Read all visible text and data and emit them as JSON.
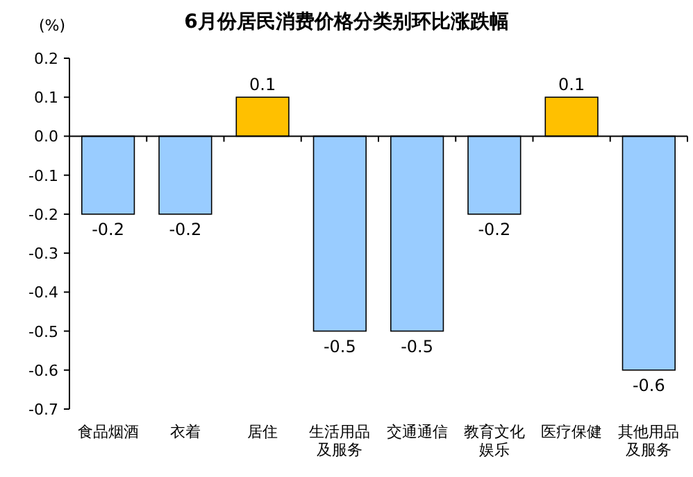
{
  "chart_data": {
    "type": "bar",
    "title": "6月份居民消费价格分类别环比涨跌幅",
    "ylabel": "(%)",
    "categories": [
      "食品烟酒",
      "衣着",
      "居住",
      "生活用品及服务",
      "交通通信",
      "教育文化娱乐",
      "医疗保健",
      "其他用品及服务"
    ],
    "values": [
      -0.2,
      -0.2,
      0.1,
      -0.5,
      -0.5,
      -0.2,
      0.1,
      -0.6
    ],
    "colors": [
      "#99ccff",
      "#99ccff",
      "#ffc000",
      "#99ccff",
      "#99ccff",
      "#99ccff",
      "#ffc000",
      "#99ccff"
    ],
    "ylim": [
      -0.7,
      0.2
    ],
    "yticks": [
      0.2,
      0.1,
      {
        "value": 0,
        "label": "0.0"
      },
      -0.1,
      -0.2,
      -0.3,
      -0.4,
      -0.5,
      -0.6,
      -0.7
    ],
    "data_labels": true
  }
}
